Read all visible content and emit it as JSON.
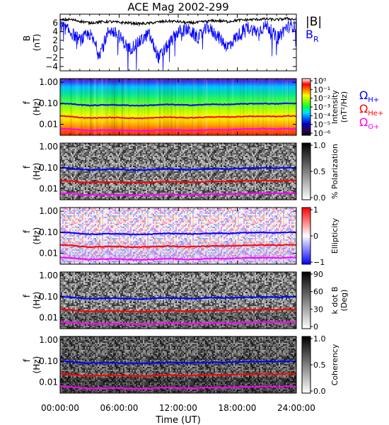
{
  "title": "ACE Mag 2002-299",
  "x_axis": {
    "label": "Time (UT)",
    "ticks": [
      "00:00:00",
      "06:00:00",
      "12:00:00",
      "18:00:00",
      "24:00:00"
    ],
    "tick_hours": [
      0,
      6,
      12,
      18,
      24
    ],
    "range_hours": [
      0,
      24
    ]
  },
  "legend": {
    "b_total": "|B|",
    "b_r_main": "B",
    "b_r_sub": "R",
    "omega": "Ω",
    "h_sub": "H+",
    "he_sub": "He+",
    "o_sub": "O+",
    "colors": {
      "b_total": "#000000",
      "b_r": "#0000ff",
      "h": "#0000ff",
      "he": "#ff0000",
      "o": "#ff00ff"
    }
  },
  "chart_data": [
    {
      "id": "field",
      "type": "line",
      "ylabel_top": "B",
      "ylabel_bottom": "(nT)",
      "ylim": [
        -5,
        8
      ],
      "yticks": [
        "6",
        "4",
        "2",
        "0",
        "−2",
        "−4"
      ],
      "ytick_values": [
        6,
        4,
        2,
        0,
        -2,
        -4
      ],
      "series": [
        {
          "name": "|B|",
          "color": "#000000",
          "x_hours": [
            0,
            1,
            2,
            3,
            4,
            5,
            6,
            7,
            8,
            9,
            10,
            11,
            12,
            13,
            14,
            15,
            16,
            17,
            18,
            19,
            20,
            21,
            22,
            23,
            24
          ],
          "y": [
            6.6,
            6.8,
            6.4,
            6.0,
            6.2,
            6.3,
            6.1,
            6.0,
            5.8,
            5.9,
            6.2,
            6.4,
            6.3,
            6.0,
            6.1,
            6.4,
            6.5,
            6.3,
            6.6,
            6.7,
            6.8,
            6.9,
            6.7,
            7.0,
            6.8
          ]
        },
        {
          "name": "B_R",
          "color": "#0000ff",
          "x_hours": [
            0,
            1,
            2,
            3,
            4,
            5,
            6,
            7,
            8,
            9,
            10,
            11,
            12,
            13,
            14,
            15,
            16,
            17,
            18,
            19,
            20,
            21,
            22,
            23,
            24
          ],
          "y": [
            5.5,
            4.0,
            2.0,
            3.5,
            -1.0,
            4.5,
            3.0,
            0.0,
            1.5,
            3.5,
            -2.0,
            1.0,
            4.0,
            4.5,
            2.5,
            5.0,
            3.0,
            0.5,
            3.0,
            5.0,
            4.0,
            5.5,
            2.5,
            5.0,
            5.5
          ]
        }
      ]
    },
    {
      "id": "intensity",
      "type": "heatmap",
      "ylabel_top": "f",
      "ylabel_bottom": "(Hz)",
      "yscale": "log",
      "ylim": [
        0.003,
        1.5
      ],
      "yticks": [
        "1.00",
        "0.10",
        "0.01"
      ],
      "ytick_values": [
        1.0,
        0.1,
        0.01
      ],
      "colorbar": {
        "label_top": "Intensity",
        "label_bottom": "(nT²/Hz)",
        "ticks": [
          "10⁰",
          "10⁻¹",
          "10⁻²",
          "10⁻³",
          "10⁻⁴",
          "10⁻⁵",
          "10⁻⁶"
        ],
        "colors": [
          "#ffffff",
          "#ff0000",
          "#ff8000",
          "#ffff00",
          "#80ff00",
          "#00ff40",
          "#00e0ff",
          "#0060ff",
          "#0000c0",
          "#300060",
          "#000000"
        ]
      },
      "gyro_lines": true
    },
    {
      "id": "polarization",
      "type": "heatmap",
      "ylabel_top": "f",
      "ylabel_bottom": "(Hz)",
      "yscale": "log",
      "ylim": [
        0.003,
        1.5
      ],
      "yticks": [
        "1.00",
        "0.10",
        "0.01"
      ],
      "ytick_values": [
        1.0,
        0.1,
        0.01
      ],
      "colorbar": {
        "label_top": "% Polarization",
        "label_bottom": "",
        "ticks": [
          "1.0",
          "0.5",
          "0.0"
        ],
        "colors": [
          "#000000",
          "#ffffff"
        ]
      },
      "gyro_lines": true
    },
    {
      "id": "ellipticity",
      "type": "heatmap",
      "ylabel_top": "f",
      "ylabel_bottom": "(Hz)",
      "yscale": "log",
      "ylim": [
        0.003,
        1.5
      ],
      "yticks": [
        "1.00",
        "0.10",
        "0.01"
      ],
      "ytick_values": [
        1.0,
        0.1,
        0.01
      ],
      "colorbar": {
        "label_top": "Ellipticity",
        "label_bottom": "",
        "ticks": [
          "1",
          "0",
          "−1"
        ],
        "colors": [
          "#ff0000",
          "#ffffff",
          "#0000ff"
        ]
      },
      "gyro_lines": true
    },
    {
      "id": "kdotb",
      "type": "heatmap",
      "ylabel_top": "f",
      "ylabel_bottom": "(Hz)",
      "yscale": "log",
      "ylim": [
        0.003,
        1.5
      ],
      "yticks": [
        "1.00",
        "0.10",
        "0.01"
      ],
      "ytick_values": [
        1.0,
        0.1,
        0.01
      ],
      "colorbar": {
        "label_top": "k dot B",
        "label_bottom": "(Deg)",
        "ticks": [
          "90",
          "60",
          "30",
          "0"
        ],
        "colors": [
          "#000000",
          "#ffffff"
        ]
      },
      "gyro_lines": true
    },
    {
      "id": "coherency",
      "type": "heatmap",
      "ylabel_top": "f",
      "ylabel_bottom": "(Hz)",
      "yscale": "log",
      "ylim": [
        0.003,
        1.5
      ],
      "yticks": [
        "1.00",
        "0.10",
        "0.01"
      ],
      "ytick_values": [
        1.0,
        0.1,
        0.01
      ],
      "colorbar": {
        "label_top": "Coherency",
        "label_bottom": "",
        "ticks": [
          "1.0",
          "0.5",
          "0.0"
        ],
        "colors": [
          "#000000",
          "#ffffff"
        ]
      },
      "gyro_lines": true
    }
  ],
  "gyrofrequencies": {
    "x_hours": [
      0,
      1,
      2,
      3,
      4,
      5,
      6,
      7,
      8,
      9,
      10,
      11,
      12,
      13,
      14,
      15,
      16,
      17,
      18,
      19,
      20,
      21,
      22,
      23,
      24
    ],
    "h_hz": [
      0.1,
      0.095,
      0.085,
      0.08,
      0.082,
      0.085,
      0.083,
      0.08,
      0.078,
      0.08,
      0.085,
      0.088,
      0.085,
      0.082,
      0.084,
      0.088,
      0.09,
      0.087,
      0.092,
      0.095,
      0.097,
      0.098,
      0.094,
      0.1,
      0.098
    ],
    "he_hz": [
      0.025,
      0.024,
      0.021,
      0.02,
      0.0205,
      0.021,
      0.0208,
      0.02,
      0.0195,
      0.02,
      0.021,
      0.022,
      0.021,
      0.0205,
      0.021,
      0.022,
      0.0225,
      0.022,
      0.023,
      0.024,
      0.024,
      0.0245,
      0.0235,
      0.025,
      0.0245
    ],
    "o_hz": [
      0.0063,
      0.006,
      0.0054,
      0.005,
      0.0052,
      0.0053,
      0.0052,
      0.005,
      0.0049,
      0.005,
      0.0053,
      0.0055,
      0.0053,
      0.0051,
      0.0052,
      0.0055,
      0.0056,
      0.0054,
      0.0058,
      0.006,
      0.0061,
      0.0062,
      0.0059,
      0.0063,
      0.0061
    ]
  }
}
